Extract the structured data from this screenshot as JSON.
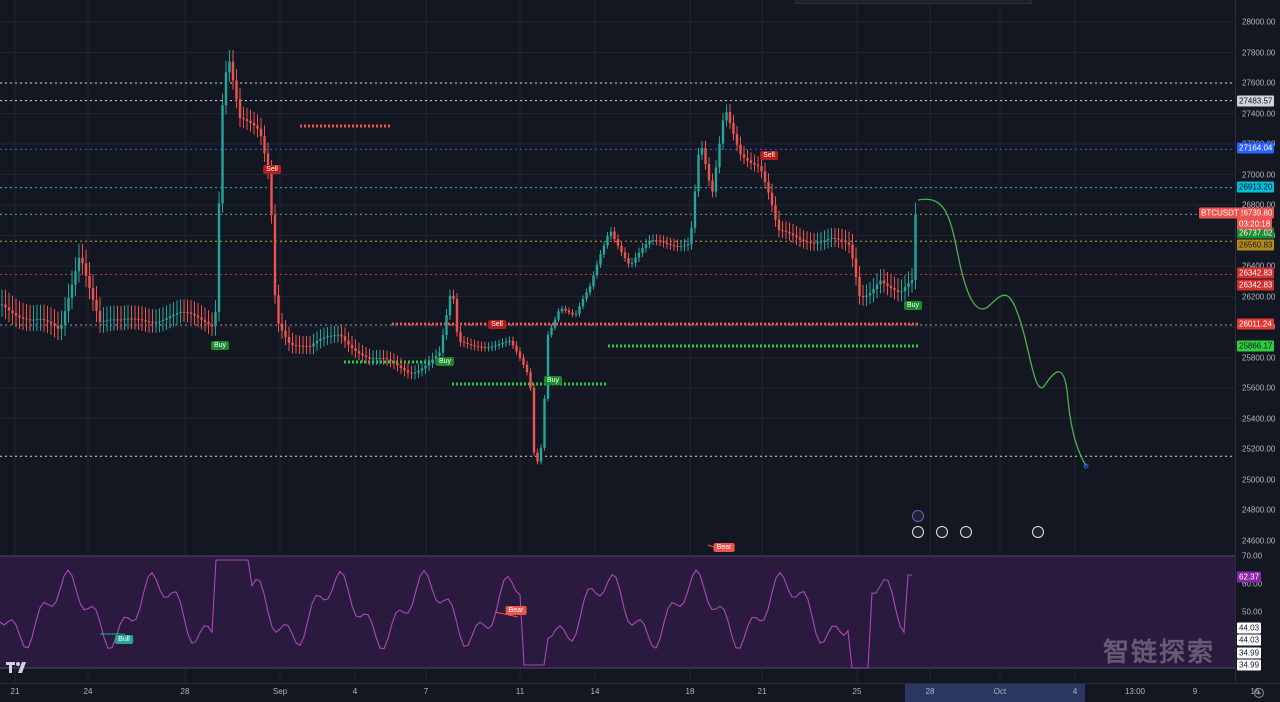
{
  "symbol": "BTCUSDT",
  "last_price": "26739.80",
  "countdown": "03:20:18",
  "price_ticks": [
    "28000.00",
    "27800.00",
    "27600.00",
    "27400.00",
    "27200.00",
    "27000.00",
    "26800.00",
    "26600.00",
    "26400.00",
    "26200.00",
    "26000.00",
    "25800.00",
    "25600.00",
    "25400.00",
    "25200.00",
    "25000.00",
    "24800.00",
    "24600.00"
  ],
  "level_tags": [
    {
      "label": "27483.57",
      "bg": "#d1d4dc",
      "fg": "#131722"
    },
    {
      "label": "27164.04",
      "bg": "#2962ff",
      "fg": "#ffffff"
    },
    {
      "label": "26913.20",
      "bg": "#00bcd4",
      "fg": "#131722"
    },
    {
      "label": "26737.02",
      "bg": "#1b8a2f",
      "fg": "#ffffff"
    },
    {
      "label": "26560.83",
      "bg": "#b58a1c",
      "fg": "#131722"
    },
    {
      "label": "26342.83",
      "bg": "#d32f2f",
      "fg": "#ffffff"
    },
    {
      "label": "26342.83",
      "bg": "#d32f2f",
      "fg": "#ffffff"
    },
    {
      "label": "26011.24",
      "bg": "#e53935",
      "fg": "#ffffff"
    },
    {
      "label": "25866.17",
      "bg": "#2ecc40",
      "fg": "#131722"
    }
  ],
  "rsi_ticks": [
    "70.00",
    "60.00",
    "50.00"
  ],
  "rsi_tags": [
    {
      "label": "62.37",
      "bg": "#8e24aa",
      "fg": "#ffffff"
    },
    {
      "label": "44.03",
      "bg": "#ffffff",
      "fg": "#131722"
    },
    {
      "label": "44.03",
      "bg": "#ffffff",
      "fg": "#131722"
    },
    {
      "label": "34.99",
      "bg": "#ffffff",
      "fg": "#131722"
    },
    {
      "label": "34.99",
      "bg": "#ffffff",
      "fg": "#131722"
    }
  ],
  "time_ticks": [
    "21",
    "24",
    "28",
    "Sep",
    "4",
    "7",
    "11",
    "14",
    "18",
    "21",
    "25",
    "28",
    "Oct",
    "4",
    "13:00",
    "9",
    "16"
  ],
  "signals": [
    {
      "label": "Buy",
      "type": "buy"
    },
    {
      "label": "Sell",
      "type": "sell"
    },
    {
      "label": "Sell",
      "type": "sell"
    },
    {
      "label": "Buy",
      "type": "buy"
    },
    {
      "label": "Buy",
      "type": "buy"
    },
    {
      "label": "Sell",
      "type": "sell"
    },
    {
      "label": "Buy",
      "type": "buy"
    },
    {
      "label": "Bull",
      "type": "bull"
    },
    {
      "label": "Bear",
      "type": "bear"
    },
    {
      "label": "Bear",
      "type": "bear"
    }
  ],
  "watermark": "智链探索",
  "colors": {
    "bg": "#131722",
    "up": "#26a69a",
    "down": "#ef5350",
    "rsi": "#ab47bc",
    "rsi_band": "#2a1a3e",
    "forecast": "#4caf50"
  }
}
